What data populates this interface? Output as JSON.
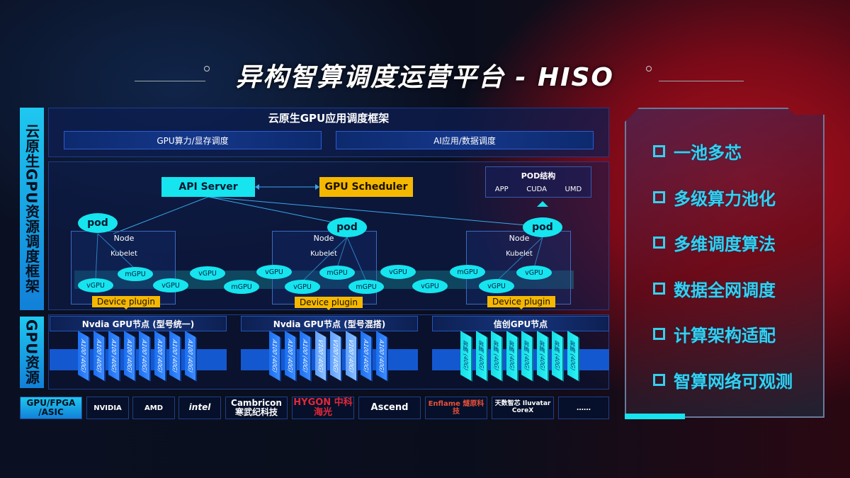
{
  "title": "异构智算调度运营平台 - HISO",
  "left_labels": {
    "framework": "云原生GPU资源调度框架",
    "gpu": "GPU资源"
  },
  "framework": {
    "title": "云原生GPU应用调度框架",
    "bar1": "GPU算力/显存调度",
    "bar2": "AI应用/数据调度",
    "api_server": "API Server",
    "gpu_scheduler": "GPU Scheduler",
    "pod_struct": {
      "title": "POD结构",
      "items": [
        "APP",
        "CUDA",
        "UMD"
      ]
    },
    "pod": "pod",
    "node": "Node",
    "kubelet": "Kubelet",
    "device_plugin": "Device plugin",
    "gpu_ellipses": [
      "vGPU",
      "mGPU",
      "vGPU",
      "vGPU",
      "mGPU",
      "vGPU",
      "vGPU",
      "mGPU",
      "mGPU",
      "vGPU",
      "vGPU",
      "mGPU",
      "vGPU",
      "vGPU"
    ]
  },
  "gpu_groups": [
    {
      "title": "Nvdia GPU节点 (型号统一)",
      "chips": [
        "A100 (40G)",
        "A100 (40G)",
        "A100 (40G)",
        "A100 (40G)",
        "A100 (40G)",
        "A100 (40G)",
        "A100 (40G)",
        "A100 (40G)"
      ],
      "kinds": [
        "a",
        "a",
        "a",
        "a",
        "a",
        "a",
        "a",
        "a"
      ]
    },
    {
      "title": "Nvdia GPU节点 (型号混搭)",
      "chips": [
        "A100 (40G)",
        "A100 (40G)",
        "A100 (40G)",
        "V100 (40G)",
        "V100 (40G)",
        "V100 (40G)",
        "A100 (40G)",
        "A100 (40G)"
      ],
      "kinds": [
        "a",
        "a",
        "a",
        "v",
        "v",
        "v",
        "a",
        "a"
      ]
    },
    {
      "title": "信创GPU节点",
      "chips": [
        "昇腾 (40G)",
        "昇腾 (40G)",
        "昇腾 (40G)",
        "昇腾 (40G)",
        "昇腾 (40G)",
        "昇腾 (40G)",
        "昇腾 (40G)",
        "昇腾 (40G)"
      ],
      "kinds": [
        "x",
        "x",
        "x",
        "x",
        "x",
        "x",
        "x",
        "x"
      ]
    }
  ],
  "vendors": {
    "label": "GPU/FPGA /ASIC",
    "items": [
      "NVIDIA",
      "AMD",
      "intel",
      "Cambricon 寒武纪科技",
      "HYGON 中科海光",
      "Ascend",
      "Enflame 燧原科技",
      "天数智芯 Iluvatar CoreX",
      "……"
    ]
  },
  "features": [
    "一池多芯",
    "多级算力池化",
    "多维调度算法",
    "数据全网调度",
    "计算架构适配",
    "智算网络可观测"
  ],
  "colors": {
    "accent": "#16e4ee",
    "highlight": "#f5b800",
    "feature": "#35d0f0"
  }
}
